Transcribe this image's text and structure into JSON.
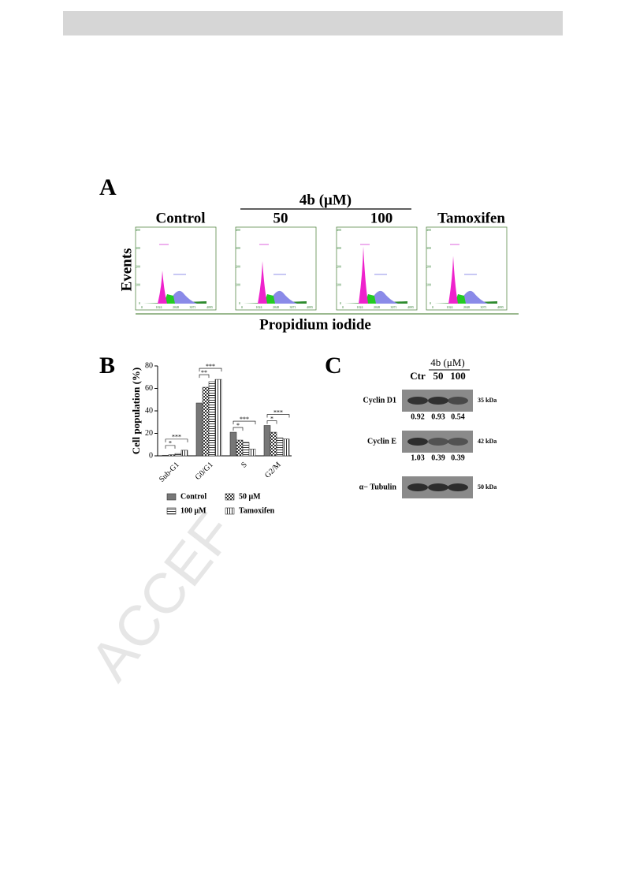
{
  "panel_a": {
    "label": "A",
    "group_label": "4b (μM)",
    "titles": [
      "Control",
      "50",
      "100",
      "Tamoxifen"
    ],
    "y_label": "Events",
    "x_label": "Propidium iodide",
    "x_ticks": [
      0,
      1024,
      2048,
      3071,
      4095
    ],
    "y_ticks": [
      0,
      100,
      200,
      300,
      400
    ]
  },
  "chart_data": {
    "type": "bar",
    "label": "B",
    "y_label": "Cell population (%)",
    "categories": [
      "Sub-G1",
      "G0/G1",
      "S",
      "G2/M"
    ],
    "series": [
      {
        "name": "Control",
        "color": "#777777",
        "pattern": "solid",
        "values": [
          0.5,
          47,
          21,
          27
        ]
      },
      {
        "name": "50 μM",
        "color": "#333333",
        "pattern": "checker",
        "values": [
          1,
          61,
          14,
          21
        ]
      },
      {
        "name": "100 μM",
        "color": "#333333",
        "pattern": "hlines",
        "values": [
          2,
          66,
          12,
          16
        ]
      },
      {
        "name": "Tamoxifen",
        "color": "#333333",
        "pattern": "vlines",
        "values": [
          5,
          68,
          6,
          15
        ]
      }
    ],
    "ylim": [
      0,
      80
    ],
    "yticks": [
      0,
      20,
      40,
      60,
      80
    ],
    "grid": false,
    "legend": "bottom",
    "annotations": [
      "*",
      "***",
      "**",
      "***",
      "*",
      "***",
      "*",
      "***"
    ]
  },
  "panel_c": {
    "label": "C",
    "group_label": "4b (μM)",
    "lanes": [
      "Ctr",
      "50",
      "100"
    ],
    "rows": [
      {
        "name": "Cyclin D1",
        "size": "35 kDa",
        "ratios": [
          "0.92",
          "0.93",
          "0.54"
        ]
      },
      {
        "name": "Cyclin E",
        "size": "42 kDa",
        "ratios": [
          "1.03",
          "0.39",
          "0.39"
        ]
      },
      {
        "name": "α− Tubulin",
        "size": "50 kDa"
      }
    ]
  },
  "watermark": "ACCEF"
}
